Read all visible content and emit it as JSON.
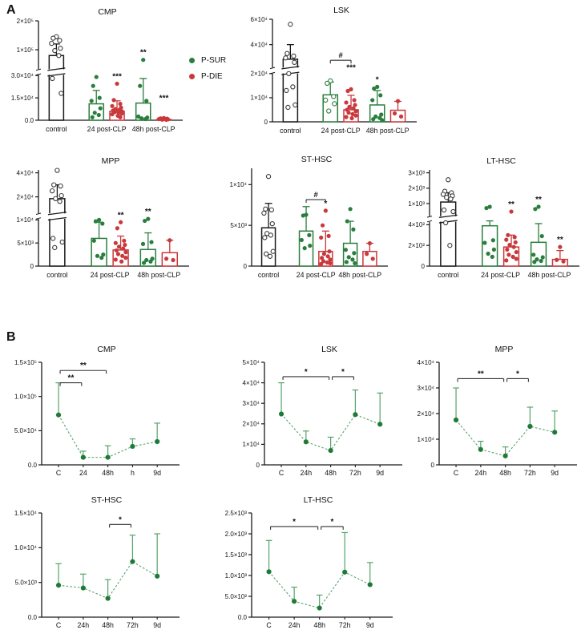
{
  "figure": {
    "panel_a_label": "A",
    "panel_b_label": "B",
    "legend": [
      {
        "name": "p-sur",
        "label": "P-SUR",
        "color": "#2a7e3d"
      },
      {
        "name": "p-die",
        "label": "P-DIE",
        "color": "#c9393c"
      }
    ]
  },
  "colors": {
    "control": "#1a1a1a",
    "P-SUR": "#2a7e3d",
    "P-DIE": "#c9393c",
    "line_green": "#55a36a",
    "marker_green": "#1f7a38",
    "axis": "#1a1a1a",
    "sig": "#111111"
  },
  "chart_data": [
    {
      "id": "a-cmp",
      "panel": "A",
      "type": "bar",
      "title": "CMP",
      "groups": [
        "control",
        "24 post-CLP",
        "48h post-CLP"
      ],
      "ymap": [
        {
          "v": 0,
          "f": 0
        },
        {
          "v": 30000,
          "f": 0.45
        },
        {
          "v": 35000,
          "f": 0.52
        },
        {
          "v": 200000,
          "f": 1.0
        }
      ],
      "break_f": 0.485,
      "yticks": [
        {
          "label": "2×10⁵",
          "v": 200000
        },
        {
          "label": "1×10⁵",
          "v": 100000
        },
        {
          "label": "3.0×10⁴",
          "v": 30000
        },
        {
          "label": "1.5×10⁴",
          "v": 15000
        },
        {
          "label": "0.0",
          "v": 0
        }
      ],
      "bars": [
        {
          "series": "control",
          "group": 0,
          "open": true,
          "mean": 80000,
          "err": 120000,
          "sig": "",
          "points": [
            145000,
            140000,
            132000,
            122000,
            105000,
            97000,
            80000,
            28000,
            18000
          ]
        },
        {
          "series": "P-SUR",
          "group": 1,
          "mean": 11000,
          "err": 20000,
          "sig": "",
          "points": [
            29000,
            23000,
            15000,
            13000,
            8000,
            5000,
            3500,
            2000
          ]
        },
        {
          "series": "P-DIE",
          "group": 1,
          "mean": 6000,
          "err": 13000,
          "sig": "***",
          "points": [
            24500,
            13500,
            11000,
            9500,
            8500,
            7500,
            7000,
            6500,
            6000,
            5500,
            5000,
            4500,
            4000,
            3000,
            2000
          ]
        },
        {
          "series": "P-SUR",
          "group": 2,
          "mean": 11500,
          "err": 28000,
          "sig": "**",
          "points": [
            65000,
            23000,
            13000,
            2500,
            1800,
            1200,
            800
          ]
        },
        {
          "series": "P-DIE",
          "group": 2,
          "mean": 500,
          "err": 1200,
          "sig": "***",
          "sigv": 10000,
          "points": [
            1500,
            1200,
            1000,
            800,
            600,
            400,
            300
          ]
        }
      ],
      "brackets": []
    },
    {
      "id": "a-lsk",
      "panel": "A",
      "type": "bar",
      "title": "LSK",
      "groups": [
        "control",
        "24 post-CLP",
        "48h post-CLP"
      ],
      "ymap": [
        {
          "v": 0,
          "f": 0
        },
        {
          "v": 20000,
          "f": 0.47
        },
        {
          "v": 22000,
          "f": 0.53
        },
        {
          "v": 60000,
          "f": 1.0
        }
      ],
      "break_f": 0.5,
      "yticks": [
        {
          "label": "6×10⁴",
          "v": 60000
        },
        {
          "label": "4×10⁴",
          "v": 40000
        },
        {
          "label": "2×10⁴",
          "v": 20000
        },
        {
          "label": "1×10⁴",
          "v": 10000
        },
        {
          "label": "0",
          "v": 0
        }
      ],
      "bars": [
        {
          "series": "control",
          "group": 0,
          "open": true,
          "mean": 28500,
          "err": 40000,
          "sig": "",
          "points": [
            56000,
            33000,
            31000,
            29500,
            26000,
            20000,
            14500,
            13000,
            7000,
            6000
          ]
        },
        {
          "series": "P-SUR",
          "group": 1,
          "open": true,
          "mean": 11200,
          "err": 16500,
          "sig": "",
          "points": [
            17000,
            16000,
            10500,
            9000,
            7500,
            4500
          ]
        },
        {
          "series": "P-DIE",
          "group": 1,
          "mean": 5000,
          "err": 11000,
          "sig": "***",
          "sigv": 19500,
          "points": [
            13500,
            12800,
            9000,
            8000,
            7000,
            6200,
            5600,
            5000,
            4400,
            3800,
            3200,
            2600,
            2000,
            1500
          ]
        },
        {
          "series": "P-SUR",
          "group": 2,
          "mean": 7000,
          "err": 13000,
          "sig": "*",
          "points": [
            14500,
            13800,
            11000,
            9000,
            3000,
            2200,
            1600,
            1100,
            700
          ]
        },
        {
          "series": "P-DIE",
          "group": 2,
          "mean": 4800,
          "err": 8500,
          "sig": "",
          "points": [
            8600,
            3500,
            2200
          ]
        }
      ],
      "brackets": [
        {
          "a": 1,
          "b": 2,
          "label": "#",
          "f": 0.6
        }
      ]
    },
    {
      "id": "a-mpp",
      "panel": "A",
      "type": "bar",
      "title": "MPP",
      "groups": [
        "control",
        "24 post-CLP",
        "48h post-CLP"
      ],
      "ymap": [
        {
          "v": 0,
          "f": 0
        },
        {
          "v": 10000,
          "f": 0.48
        },
        {
          "v": 11500,
          "f": 0.56
        },
        {
          "v": 20000,
          "f": 0.72
        },
        {
          "v": 40000,
          "f": 0.97
        }
      ],
      "break_f": 0.52,
      "yticks": [
        {
          "label": "4×10⁴",
          "v": 40000
        },
        {
          "label": "2×10⁴",
          "v": 20000
        },
        {
          "label": "1×10⁴",
          "v": 10000
        },
        {
          "label": "5×10³",
          "v": 5000
        },
        {
          "label": "0",
          "v": 0
        }
      ],
      "bars": [
        {
          "series": "control",
          "group": 0,
          "open": true,
          "mean": 19000,
          "err": 30000,
          "sig": "",
          "points": [
            42000,
            30000,
            29000,
            25000,
            21000,
            19000,
            17500,
            6000,
            5200,
            4000
          ]
        },
        {
          "series": "P-SUR",
          "group": 1,
          "mean": 6000,
          "err": 9500,
          "sig": "",
          "points": [
            10000,
            9700,
            9200,
            5500,
            2500,
            2200,
            1800
          ]
        },
        {
          "series": "P-DIE",
          "group": 1,
          "mean": 3500,
          "err": 6500,
          "sig": "**",
          "points": [
            9500,
            8200,
            5500,
            5000,
            4600,
            4200,
            3800,
            3400,
            3000,
            2600,
            2200,
            1800,
            1400,
            1000
          ]
        },
        {
          "series": "P-SUR",
          "group": 2,
          "mean": 3600,
          "err": 7200,
          "sig": "**",
          "points": [
            10200,
            9800,
            5200,
            4800,
            1600,
            1300,
            1000,
            700
          ]
        },
        {
          "series": "P-DIE",
          "group": 2,
          "mean": 2900,
          "err": 5600,
          "sig": "",
          "points": [
            5600,
            1600,
            1300
          ]
        }
      ],
      "brackets": []
    },
    {
      "id": "a-sthsc",
      "panel": "A",
      "type": "bar",
      "title": "ST-HSC",
      "groups": [
        "control",
        "24 post-CLP",
        "48h post-CLP"
      ],
      "ymap": [
        {
          "v": 0,
          "f": 0
        },
        {
          "v": 12000,
          "f": 1.0
        }
      ],
      "break_f": null,
      "yticks": [
        {
          "label": "1×10⁴",
          "v": 10000
        },
        {
          "label": "5×10³",
          "v": 5000
        },
        {
          "label": "0",
          "v": 0
        }
      ],
      "bars": [
        {
          "series": "control",
          "group": 0,
          "open": true,
          "mean": 4700,
          "err": 7700,
          "sig": "",
          "points": [
            11000,
            7000,
            6900,
            6500,
            5200,
            4000,
            3800,
            3500,
            1800,
            1500,
            1200
          ]
        },
        {
          "series": "P-SUR",
          "group": 1,
          "mean": 4300,
          "err": 7300,
          "sig": "",
          "points": [
            6300,
            6200,
            3800,
            3200,
            2500,
            2200
          ]
        },
        {
          "series": "P-DIE",
          "group": 1,
          "mean": 1800,
          "err": 4300,
          "sig": "*",
          "points": [
            6800,
            5000,
            3700,
            3500,
            1800,
            1500,
            1200,
            1000,
            800,
            600,
            450,
            350,
            250
          ]
        },
        {
          "series": "P-SUR",
          "group": 2,
          "mean": 2800,
          "err": 5500,
          "sig": "",
          "points": [
            7000,
            5500,
            4500,
            2000,
            1600,
            1100,
            800,
            500,
            350
          ]
        },
        {
          "series": "P-DIE",
          "group": 2,
          "mean": 1800,
          "err": 2800,
          "sig": "",
          "points": [
            2800,
            1500,
            900
          ]
        }
      ],
      "brackets": [
        {
          "a": 1,
          "b": 2,
          "label": "#",
          "f": 0.68
        }
      ]
    },
    {
      "id": "a-lthsc",
      "panel": "A",
      "type": "bar",
      "title": "LT-HSC",
      "groups": [
        "control",
        "24 post-CLP",
        "48h post-CLP"
      ],
      "ymap": [
        {
          "v": 0,
          "f": 0
        },
        {
          "v": 400,
          "f": 0.43
        },
        {
          "v": 700,
          "f": 0.55
        },
        {
          "v": 1000,
          "f": 0.65
        },
        {
          "v": 2000,
          "f": 0.81
        },
        {
          "v": 3000,
          "f": 0.97
        }
      ],
      "break_f": 0.49,
      "yticks": [
        {
          "label": "3×10³",
          "v": 3000
        },
        {
          "label": "2×10³",
          "v": 2000
        },
        {
          "label": "1×10³",
          "v": 1000
        },
        {
          "label": "4×10²",
          "v": 400
        },
        {
          "label": "2×10²",
          "v": 200
        },
        {
          "label": "0",
          "v": 0
        }
      ],
      "bars": [
        {
          "series": "control",
          "group": 0,
          "open": true,
          "mean": 1100,
          "err": 1700,
          "sig": "",
          "points": [
            2550,
            1800,
            1700,
            1600,
            1500,
            1400,
            1300,
            800,
            750,
            450,
            200
          ]
        },
        {
          "series": "P-SUR",
          "group": 1,
          "mean": 390,
          "err": 500,
          "sig": "",
          "points": [
            900,
            860,
            250,
            225,
            160,
            120,
            90
          ]
        },
        {
          "series": "P-DIE",
          "group": 1,
          "mean": 185,
          "err": 300,
          "sig": "**",
          "points": [
            750,
            300,
            280,
            255,
            230,
            205,
            185,
            160,
            135,
            110,
            90,
            70,
            55
          ]
        },
        {
          "series": "P-SUR",
          "group": 2,
          "mean": 230,
          "err": 430,
          "sig": "**",
          "points": [
            900,
            830,
            290,
            110,
            85,
            65,
            50,
            40
          ]
        },
        {
          "series": "P-DIE",
          "group": 2,
          "mean": 65,
          "err": 150,
          "sig": "**",
          "points": [
            185,
            60,
            45
          ]
        }
      ],
      "brackets": []
    },
    {
      "id": "b-cmp",
      "panel": "B",
      "type": "line",
      "title": "CMP",
      "x": [
        "C",
        "24",
        "48h",
        "h",
        "9d"
      ],
      "ymap": [
        {
          "v": 0,
          "f": 0
        },
        {
          "v": 150000,
          "f": 1.0
        }
      ],
      "yticks": [
        {
          "label": "1.5×10⁵",
          "v": 150000
        },
        {
          "label": "1.0×10⁵",
          "v": 100000
        },
        {
          "label": "5.0×10⁴",
          "v": 50000
        },
        {
          "label": "0.0",
          "v": 0
        }
      ],
      "values": [
        73000,
        11000,
        11000,
        27000,
        34000
      ],
      "err_hi": [
        120000,
        20000,
        28000,
        38000,
        61000
      ],
      "brackets": [
        {
          "a": 0,
          "b": 1,
          "label": "**",
          "f": 0.8
        },
        {
          "a": 0,
          "b": 2,
          "label": "**",
          "f": 0.92
        }
      ]
    },
    {
      "id": "b-lsk",
      "panel": "B",
      "type": "line",
      "title": "LSK",
      "x": [
        "C",
        "24h",
        "48h",
        "72h",
        "9d"
      ],
      "ymap": [
        {
          "v": 0,
          "f": 0
        },
        {
          "v": 50000,
          "f": 1.0
        }
      ],
      "yticks": [
        {
          "label": "5×10⁴",
          "v": 50000
        },
        {
          "label": "4×10⁴",
          "v": 40000
        },
        {
          "label": "3×10⁴",
          "v": 30000
        },
        {
          "label": "2×10⁴",
          "v": 20000
        },
        {
          "label": "1×10⁴",
          "v": 10000
        },
        {
          "label": "0",
          "v": 0
        }
      ],
      "values": [
        24800,
        11200,
        7000,
        24500,
        19800
      ],
      "err_hi": [
        40000,
        16500,
        13500,
        36500,
        35000
      ],
      "brackets": [
        {
          "a": 0,
          "b": 2,
          "label": "*",
          "f": 0.86
        },
        {
          "a": 2,
          "b": 3,
          "label": "*",
          "f": 0.86
        }
      ]
    },
    {
      "id": "b-mpp",
      "panel": "B",
      "type": "line",
      "title": "MPP",
      "x": [
        "C",
        "24h",
        "48h",
        "72h",
        "9d"
      ],
      "ymap": [
        {
          "v": 0,
          "f": 0
        },
        {
          "v": 40000,
          "f": 1.0
        }
      ],
      "yticks": [
        {
          "label": "4×10⁴",
          "v": 40000
        },
        {
          "label": "3×10⁴",
          "v": 30000
        },
        {
          "label": "2×10⁴",
          "v": 20000
        },
        {
          "label": "1×10⁴",
          "v": 10000
        },
        {
          "label": "0",
          "v": 0
        }
      ],
      "values": [
        17500,
        6000,
        3500,
        15000,
        12700
      ],
      "err_hi": [
        30000,
        9200,
        7000,
        22500,
        21000
      ],
      "brackets": [
        {
          "a": 0,
          "b": 2,
          "label": "**",
          "f": 0.84
        },
        {
          "a": 2,
          "b": 3,
          "label": "*",
          "f": 0.84
        }
      ]
    },
    {
      "id": "b-sthsc",
      "panel": "B",
      "type": "line",
      "title": "ST-HSC",
      "x": [
        "C",
        "24h",
        "48h",
        "72h",
        "9d"
      ],
      "ymap": [
        {
          "v": 0,
          "f": 0
        },
        {
          "v": 15000,
          "f": 1.0
        }
      ],
      "yticks": [
        {
          "label": "1.5×10⁴",
          "v": 15000
        },
        {
          "label": "1.0×10⁴",
          "v": 10000
        },
        {
          "label": "5.0×10³",
          "v": 5000
        },
        {
          "label": "0.0",
          "v": 0
        }
      ],
      "values": [
        4600,
        4200,
        2700,
        8000,
        5900
      ],
      "err_hi": [
        7700,
        6200,
        5400,
        11800,
        12000
      ],
      "brackets": [
        {
          "a": 2,
          "b": 3,
          "label": "*",
          "f": 0.89
        }
      ]
    },
    {
      "id": "b-lthsc",
      "panel": "B",
      "type": "line",
      "title": "LT-HSC",
      "x": [
        "C",
        "24h",
        "48h",
        "72h",
        "9d"
      ],
      "ymap": [
        {
          "v": 0,
          "f": 0
        },
        {
          "v": 2500,
          "f": 1.0
        }
      ],
      "yticks": [
        {
          "label": "2.5×10³",
          "v": 2500
        },
        {
          "label": "2.0×10³",
          "v": 2000
        },
        {
          "label": "1.5×10³",
          "v": 1500
        },
        {
          "label": "1.0×10³",
          "v": 1000
        },
        {
          "label": "5.0×10²",
          "v": 500
        },
        {
          "label": "0.0",
          "v": 0
        }
      ],
      "values": [
        1090,
        380,
        220,
        1080,
        780
      ],
      "err_hi": [
        1840,
        720,
        530,
        2030,
        1310
      ],
      "brackets": [
        {
          "a": 0,
          "b": 2,
          "label": "*",
          "f": 0.87
        },
        {
          "a": 2,
          "b": 3,
          "label": "*",
          "f": 0.87
        }
      ]
    }
  ]
}
